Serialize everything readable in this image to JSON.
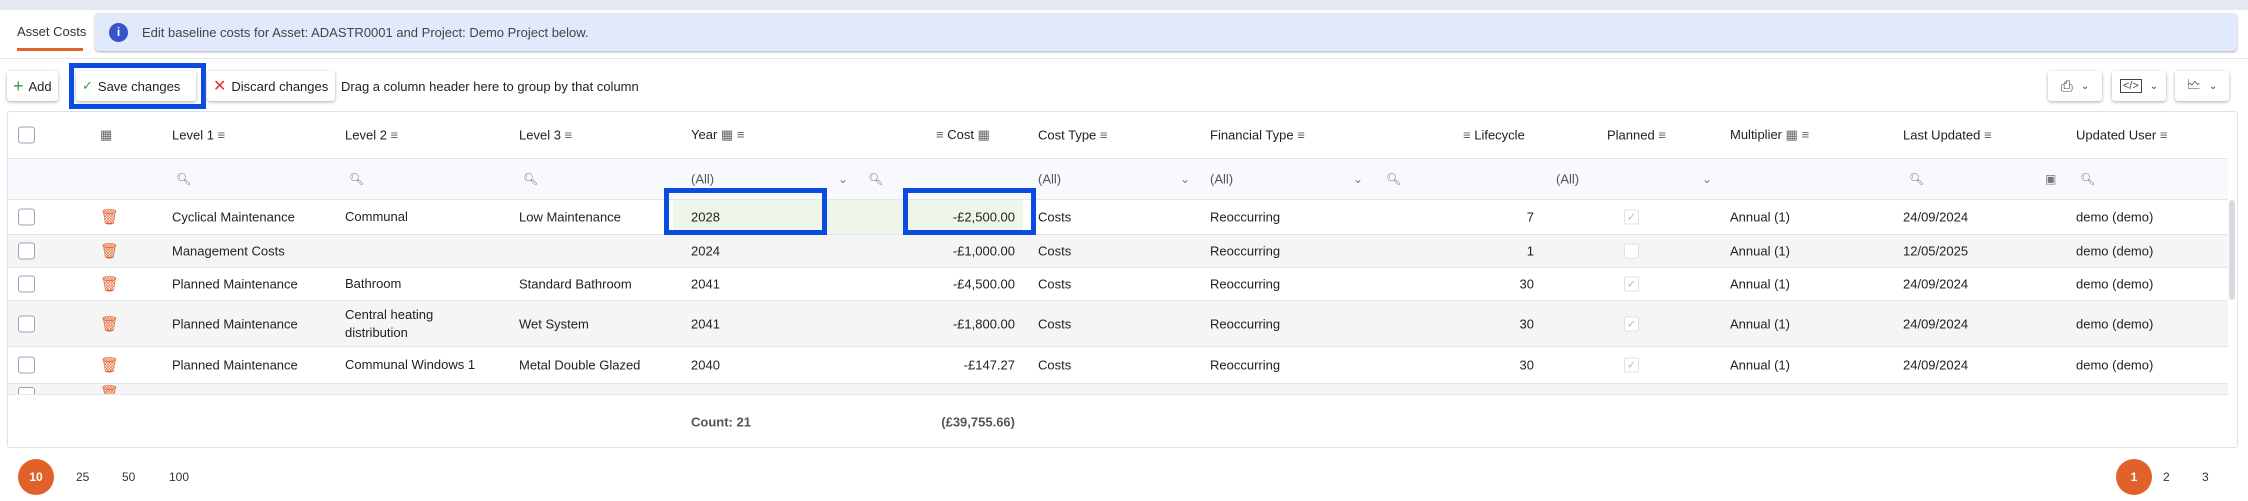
{
  "tab": "Asset Costs",
  "banner": {
    "icon": "info-icon",
    "text": "Edit baseline costs for Asset: ADASTR0001 and Project: Demo Project below."
  },
  "toolbar": {
    "add": "Add",
    "save": "Save changes",
    "discard": "Discard changes",
    "group_hint": "Drag a column header here to group by that column",
    "right_buttons": [
      "print-icon",
      "export-code-icon",
      "export-chart-icon"
    ]
  },
  "columns": [
    "Level 1",
    "Level 2",
    "Level 3",
    "Year",
    "Cost",
    "Cost Type",
    "Financial Type",
    "Lifecycle",
    "Planned",
    "Multiplier",
    "Last Updated",
    "Updated User"
  ],
  "filters": {
    "year": "(All)",
    "cost_type": "(All)",
    "financial_type": "(All)",
    "planned": "(All)"
  },
  "rows": [
    {
      "level1": "Cyclical Maintenance",
      "level2": "Communal",
      "level3": "Low Maintenance",
      "year": "2028",
      "cost": "-£2,500.00",
      "cost_type": "Costs",
      "financial_type": "Reoccurring",
      "lifecycle": "7",
      "planned": true,
      "multiplier": "Annual (1)",
      "last_updated": "24/09/2024",
      "user": "demo (demo)"
    },
    {
      "level1": "Management Costs",
      "level2": "",
      "level3": "",
      "year": "2024",
      "cost": "-£1,000.00",
      "cost_type": "Costs",
      "financial_type": "Reoccurring",
      "lifecycle": "1",
      "planned": false,
      "multiplier": "Annual (1)",
      "last_updated": "12/05/2025",
      "user": "demo (demo)"
    },
    {
      "level1": "Planned Maintenance",
      "level2": "Bathroom",
      "level3": "Standard Bathroom",
      "year": "2041",
      "cost": "-£4,500.00",
      "cost_type": "Costs",
      "financial_type": "Reoccurring",
      "lifecycle": "30",
      "planned": true,
      "multiplier": "Annual (1)",
      "last_updated": "24/09/2024",
      "user": "demo (demo)"
    },
    {
      "level1": "Planned Maintenance",
      "level2": "Central heating distribution",
      "level3": "Wet System",
      "year": "2041",
      "cost": "-£1,800.00",
      "cost_type": "Costs",
      "financial_type": "Reoccurring",
      "lifecycle": "30",
      "planned": true,
      "multiplier": "Annual (1)",
      "last_updated": "24/09/2024",
      "user": "demo (demo)"
    },
    {
      "level1": "Planned Maintenance",
      "level2": "Communal Windows 1",
      "level3": "Metal Double Glazed",
      "year": "2040",
      "cost": "-£147.27",
      "cost_type": "Costs",
      "financial_type": "Reoccurring",
      "lifecycle": "30",
      "planned": true,
      "multiplier": "Annual (1)",
      "last_updated": "24/09/2024",
      "user": "demo (demo)"
    }
  ],
  "footer": {
    "count": "Count: 21",
    "total": "(£39,755.66)"
  },
  "page_sizes": [
    "10",
    "25",
    "50",
    "100"
  ],
  "page_size_selected": "10",
  "pages": [
    "1",
    "2",
    "3"
  ],
  "page_selected": "1",
  "colors": {
    "accent": "#e0622a",
    "highlight": "#0a4be0",
    "banner": "#e1e9fc",
    "edited_cell": "#eef6ea"
  }
}
